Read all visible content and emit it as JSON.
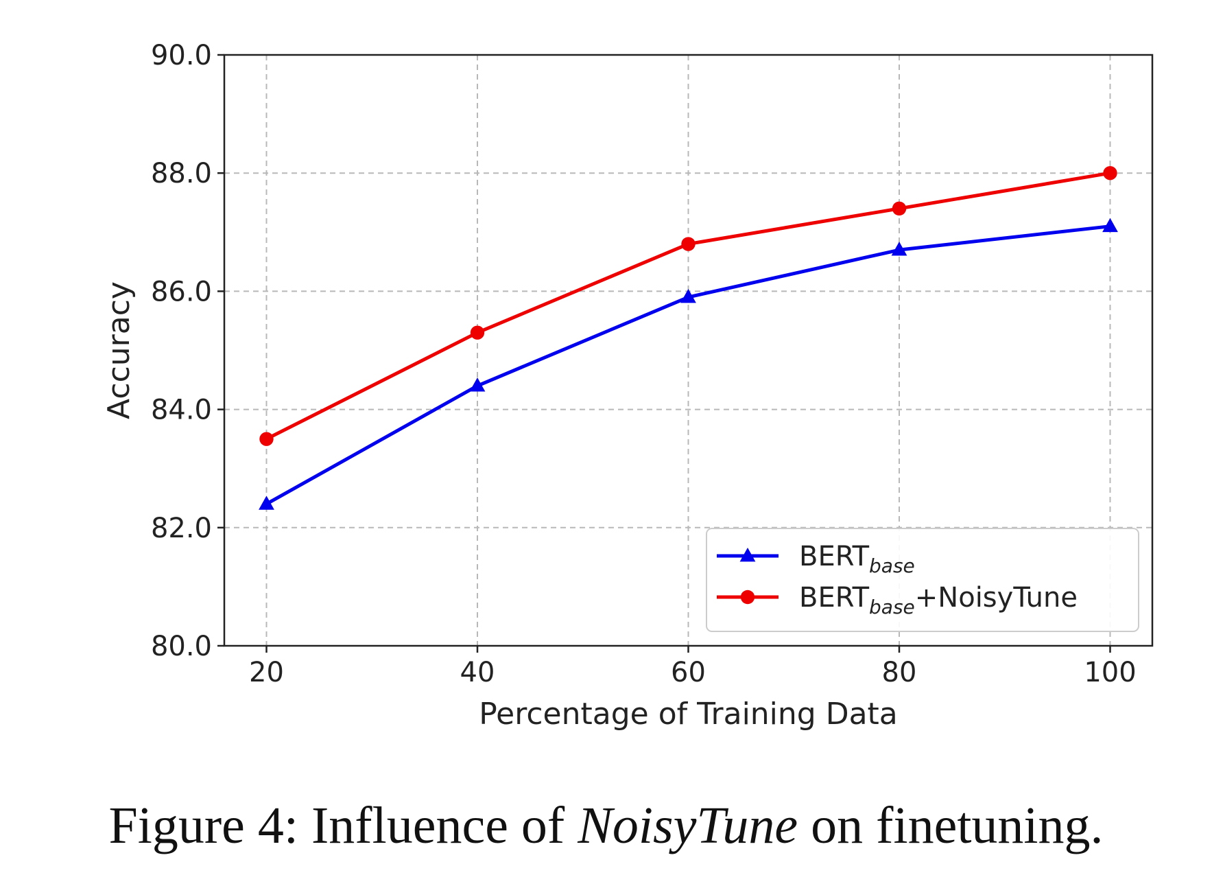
{
  "chart_data": {
    "type": "line",
    "x": [
      20,
      40,
      60,
      80,
      100
    ],
    "xlabel": "Percentage of Training Data",
    "ylabel": "Accuracy",
    "xlim": [
      16,
      104
    ],
    "ylim": [
      80.0,
      90.0
    ],
    "xticks": [
      "20",
      "40",
      "60",
      "80",
      "100"
    ],
    "yticks": [
      "80.0",
      "82.0",
      "84.0",
      "86.0",
      "88.0",
      "90.0"
    ],
    "grid": true,
    "legend_position": "lower-right",
    "series": [
      {
        "name": "BERT",
        "name_subscript": "base",
        "name_suffix": "",
        "color": "#0000ee",
        "marker": "triangle",
        "values": [
          82.4,
          84.4,
          85.9,
          86.7,
          87.1
        ]
      },
      {
        "name": "BERT",
        "name_subscript": "base",
        "name_suffix": "+NoisyTune",
        "color": "#ee0000",
        "marker": "circle",
        "values": [
          83.5,
          85.3,
          86.8,
          87.4,
          88.0
        ]
      }
    ]
  },
  "caption": {
    "prefix": "Figure 4: Influence of ",
    "emphasis": "NoisyTune",
    "suffix": " on finetuning."
  }
}
